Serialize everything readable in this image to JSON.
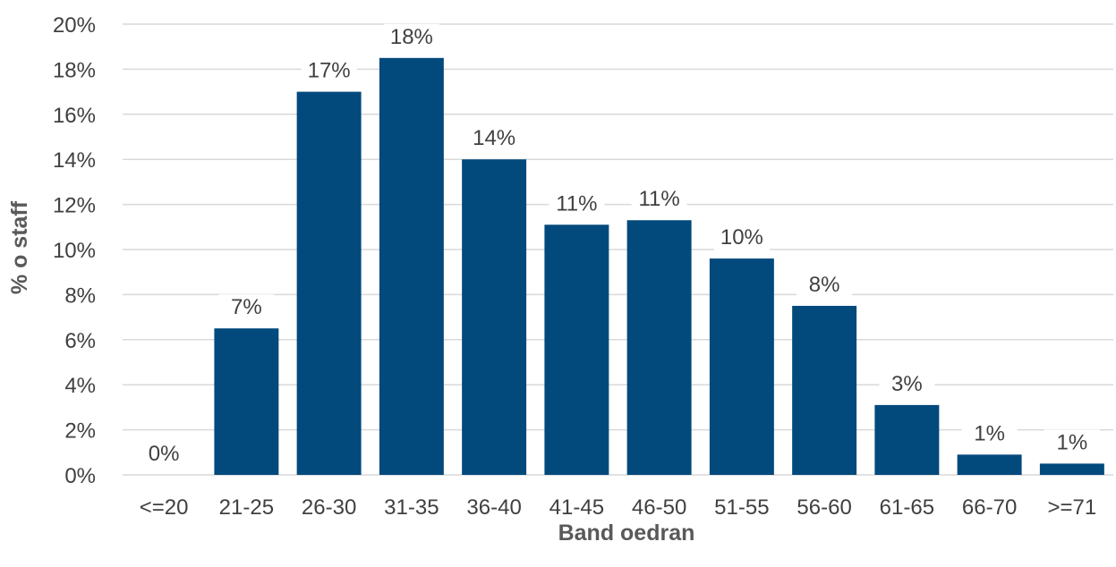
{
  "chart_data": {
    "type": "bar",
    "title": "",
    "xlabel": "Band oedran",
    "ylabel": "% o staff",
    "categories": [
      "<=20",
      "21-25",
      "26-30",
      "31-35",
      "36-40",
      "41-45",
      "46-50",
      "51-55",
      "56-60",
      "61-65",
      "66-70",
      ">=71"
    ],
    "values": [
      0,
      6.5,
      17,
      18.5,
      14,
      11.1,
      11.3,
      9.6,
      7.5,
      3.1,
      0.9,
      0.5
    ],
    "data_labels": [
      "0%",
      "7%",
      "17%",
      "18%",
      "14%",
      "11%",
      "11%",
      "10%",
      "8%",
      "3%",
      "1%",
      "1%"
    ],
    "ylim": [
      0,
      20
    ],
    "yticks": [
      "0%",
      "2%",
      "4%",
      "6%",
      "8%",
      "10%",
      "12%",
      "14%",
      "16%",
      "18%",
      "20%"
    ],
    "grid": true,
    "bar_color": "#02497c",
    "legend": "none"
  }
}
